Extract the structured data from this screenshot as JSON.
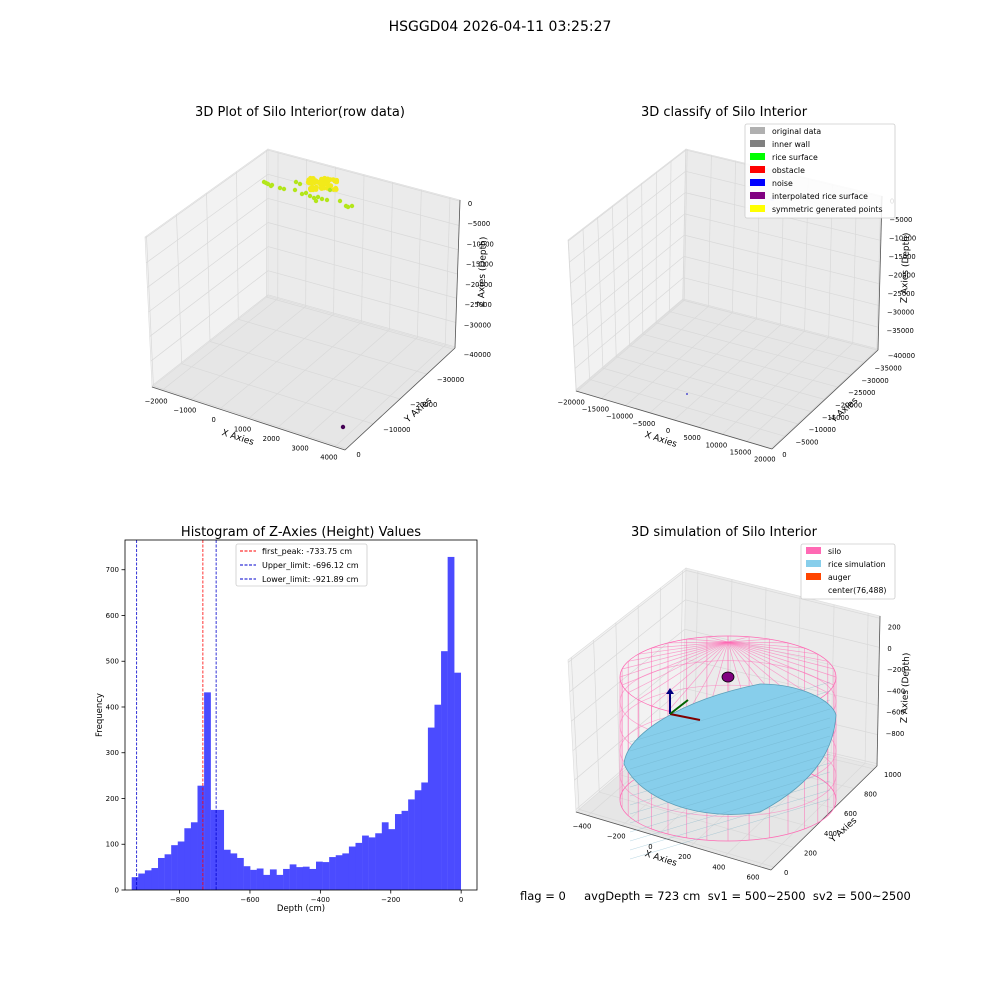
{
  "suptitle": "HSGGD04 2026-04-11 03:25:27",
  "bottom_text": "flag = 0     avgDepth = 723 cm  sv1 = 500~2500  sv2 = 500~2500",
  "chart_data": [
    {
      "id": "raw",
      "type": "scatter",
      "title": "3D Plot of Silo Interior(row data)",
      "xlabel": "X Axies",
      "ylabel": "Y Axies",
      "zlabel": "Z Axies (Depth)",
      "x_ticks": [
        "−2000",
        "−1000",
        "0",
        "1000",
        "2000",
        "3000",
        "4000"
      ],
      "y_ticks": [
        "0",
        "−10000",
        "−20000",
        "−30000",
        "−40000"
      ],
      "z_ticks": [
        "0",
        "−5000",
        "−10000",
        "−15000",
        "−20000",
        "−25000",
        "−30000"
      ],
      "colors": {
        "green_points": "#b3e61a",
        "yellow_points": "#f2ea1a",
        "outlier": "#440154"
      }
    },
    {
      "id": "classify",
      "type": "scatter",
      "title": "3D classify of Silo Interior",
      "xlabel": "X Axies",
      "ylabel": "Y Axies",
      "zlabel": "Z Axies (Depth)",
      "x_ticks": [
        "−20000",
        "−15000",
        "−10000",
        "−5000",
        "0",
        "5000",
        "10000",
        "15000",
        "20000"
      ],
      "y_ticks": [
        "0",
        "−5000",
        "−10000",
        "−15000",
        "−20000",
        "−25000",
        "−30000",
        "−35000",
        "−40000"
      ],
      "z_ticks": [
        "0",
        "−5000",
        "−10000",
        "−15000",
        "−20000",
        "−25000",
        "−30000",
        "−35000"
      ],
      "legend": [
        {
          "label": "original data",
          "color": "#b0b0b0"
        },
        {
          "label": "inner wall",
          "color": "#808080"
        },
        {
          "label": "rice surface",
          "color": "#00ff00"
        },
        {
          "label": "obstacle",
          "color": "#ff0000"
        },
        {
          "label": "noise",
          "color": "#0000ff"
        },
        {
          "label": "interpolated rice surface",
          "color": "#800080"
        },
        {
          "label": "symmetric generated points",
          "color": "#ffff00"
        }
      ]
    },
    {
      "id": "histogram",
      "type": "bar",
      "title": "Histogram of Z-Axies (Height) Values",
      "xlabel": "Depth (cm)",
      "ylabel": "Frequency",
      "xlim": [
        -955,
        45
      ],
      "ylim": [
        0,
        765
      ],
      "x_ticks": [
        -800,
        -600,
        -400,
        -200,
        0
      ],
      "y_ticks": [
        0,
        100,
        200,
        300,
        400,
        500,
        600,
        700
      ],
      "bin_start": -936,
      "bin_width": 18.7,
      "values": [
        28,
        36,
        43,
        48,
        70,
        78,
        98,
        106,
        135,
        148,
        228,
        432,
        175,
        175,
        88,
        80,
        70,
        52,
        44,
        47,
        33,
        45,
        33,
        46,
        56,
        50,
        51,
        46,
        62,
        61,
        72,
        76,
        80,
        95,
        103,
        119,
        115,
        124,
        148,
        133,
        166,
        173,
        198,
        218,
        235,
        355,
        405,
        522,
        728,
        475
      ],
      "bar_color": "#4b4bff",
      "lines": [
        {
          "label": "first_peak: -733.75 cm",
          "value": -733.75,
          "color": "#ff0000"
        },
        {
          "label": "Upper_limit: -696.12 cm",
          "value": -696.12,
          "color": "#0000cc"
        },
        {
          "label": "Lower_limit: -921.89 cm",
          "value": -921.89,
          "color": "#0000cc"
        }
      ]
    },
    {
      "id": "simulation",
      "type": "scatter",
      "title": "3D simulation of Silo Interior",
      "xlabel": "X Axies",
      "ylabel": "Y Axies",
      "zlabel": "Z Axies (Depth)",
      "x_ticks": [
        "−400",
        "−200",
        "0",
        "200",
        "400",
        "600"
      ],
      "y_ticks": [
        "0",
        "200",
        "400",
        "600",
        "800",
        "1000"
      ],
      "z_ticks": [
        "200",
        "0",
        "−200",
        "−400",
        "−600",
        "−800"
      ],
      "legend": [
        {
          "label": "silo",
          "color": "#ff69b4"
        },
        {
          "label": "rice simulation",
          "color": "#87ceeb"
        },
        {
          "label": "auger",
          "color": "#ff4500"
        },
        {
          "label": "center(76,488)",
          "color": ""
        }
      ]
    }
  ]
}
